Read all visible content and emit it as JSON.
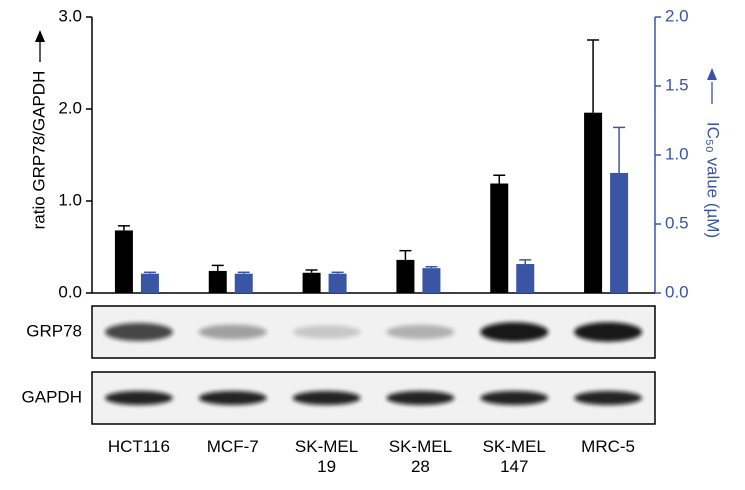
{
  "chart_data": {
    "type": "bar",
    "ylabel": "ratio GRP78/GAPDH",
    "y2label": "IC₅₀ value (µM)",
    "categories": [
      "HCT116",
      "MCF-7",
      "SK-MEL 19",
      "SK-MEL 28",
      "SK-MEL 147",
      "MRC-5"
    ],
    "series": [
      {
        "color": "#000000",
        "values": [
          0.68,
          0.24,
          0.22,
          0.36,
          1.19,
          1.96
        ],
        "errors": [
          0.05,
          0.06,
          0.03,
          0.1,
          0.09,
          0.79
        ]
      },
      {
        "color": "#3a55a4",
        "axis": "y2",
        "values": [
          0.14,
          0.14,
          0.14,
          0.18,
          0.21,
          0.87
        ],
        "errors": [
          0.01,
          0.01,
          0.01,
          0.01,
          0.03,
          0.33
        ]
      }
    ],
    "ylim": [
      0,
      3
    ],
    "yticks": [
      {
        "value": 0,
        "label": "0.0"
      },
      {
        "value": 1,
        "label": "1.0"
      },
      {
        "value": 2,
        "label": "2.0"
      },
      {
        "value": 3,
        "label": "3.0"
      }
    ],
    "y2lim": [
      0,
      2
    ],
    "y2ticks": [
      {
        "value": 0,
        "label": "0.0"
      },
      0.5,
      {
        "value": 1,
        "label": "1.0"
      },
      1.5,
      {
        "value": 2,
        "label": "2.0"
      }
    ],
    "blots": [
      {
        "label": "GRP78"
      },
      {
        "label": "GAPDH"
      }
    ]
  }
}
